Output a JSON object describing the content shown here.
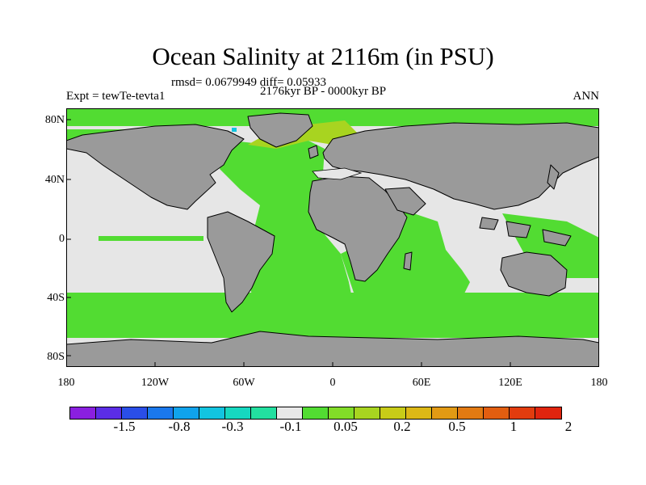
{
  "header": {
    "title": "Ocean Salinity at 2116m (in PSU)",
    "stats": "rmsd= 0.0679949 diff= 0.05933",
    "period": "2176kyr BP - 0000kyr BP",
    "experiment": "Expt = tewTe-tevta1",
    "season": "ANN"
  },
  "map": {
    "land_color": "#9a9a9a",
    "neutral_color": "#e6e6e6",
    "lat_labels": [
      "80N",
      "40N",
      "0",
      "40S",
      "80S"
    ],
    "lon_labels": [
      "180",
      "120W",
      "60W",
      "0",
      "60E",
      "120E",
      "180"
    ]
  },
  "colorbar": {
    "colors": [
      "#8a1fe0",
      "#5b2de6",
      "#2a4ee8",
      "#1a78ec",
      "#10a3ec",
      "#12c4e0",
      "#16d8c0",
      "#22e0a0",
      "#e8e8e8",
      "#52dc32",
      "#82dc28",
      "#a8d420",
      "#c8cc18",
      "#dcb816",
      "#e29a14",
      "#e27a12",
      "#e25e10",
      "#e23c0e",
      "#e0240e"
    ],
    "labels": [
      "-1.5",
      "-0.8",
      "-0.3",
      "-0.1",
      "0.05",
      "0.2",
      "0.5",
      "1",
      "2"
    ]
  }
}
